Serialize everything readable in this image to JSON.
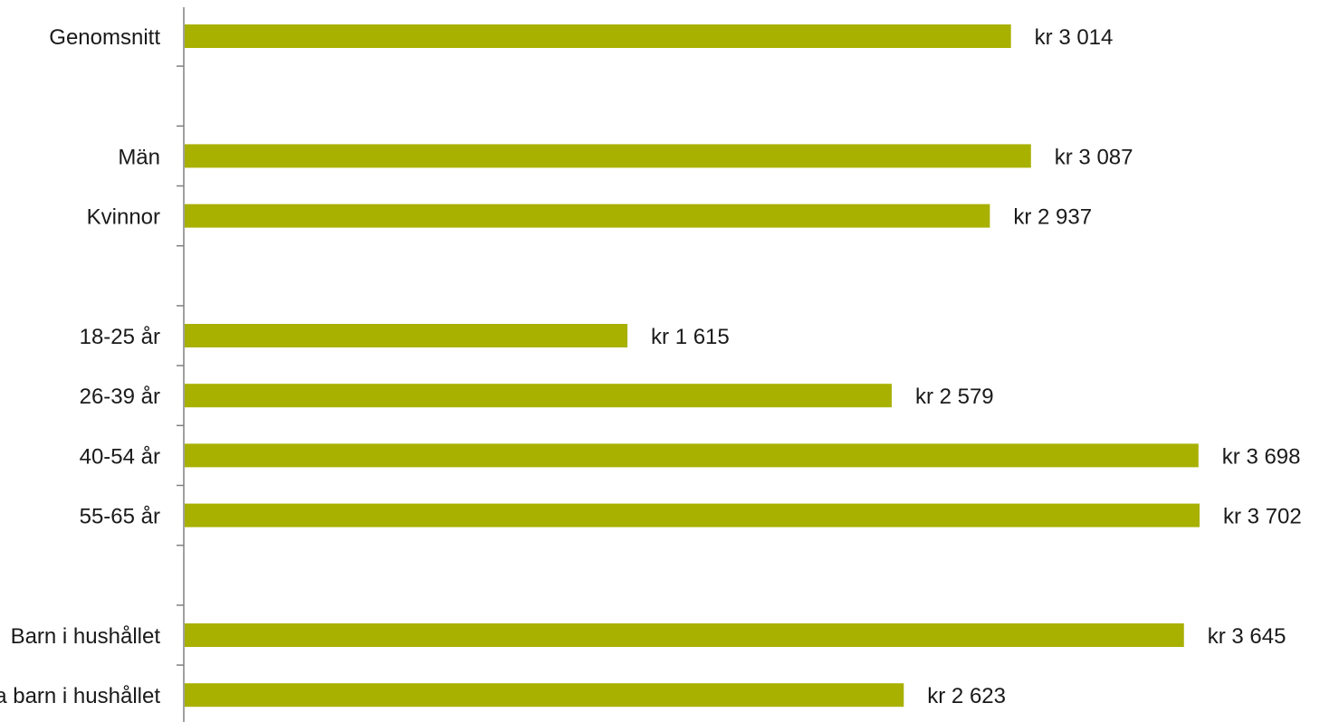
{
  "chart_data": {
    "type": "bar",
    "orientation": "horizontal",
    "rows": [
      {
        "category": "Genomsnitt",
        "value": 3014,
        "value_label": "kr 3 014"
      },
      {
        "category": "",
        "value": null,
        "value_label": ""
      },
      {
        "category": "Män",
        "value": 3087,
        "value_label": "kr 3 087"
      },
      {
        "category": "Kvinnor",
        "value": 2937,
        "value_label": "kr 2 937"
      },
      {
        "category": "",
        "value": null,
        "value_label": ""
      },
      {
        "category": "18-25 år",
        "value": 1615,
        "value_label": "kr 1 615"
      },
      {
        "category": "26-39 år",
        "value": 2579,
        "value_label": "kr 2 579"
      },
      {
        "category": "40-54 år",
        "value": 3698,
        "value_label": "kr 3 698"
      },
      {
        "category": "55-65 år",
        "value": 3702,
        "value_label": "kr 3 702"
      },
      {
        "category": "",
        "value": null,
        "value_label": ""
      },
      {
        "category": "Barn i hushållet",
        "value": 3645,
        "value_label": "kr 3 645"
      },
      {
        "category": "Inga barn i hushållet",
        "value": 2623,
        "value_label": "kr 2 623"
      }
    ],
    "xlim": [
      0,
      3702
    ],
    "grid": false,
    "title": "",
    "xlabel": "",
    "ylabel": "",
    "bar_color": "#a8b000"
  }
}
